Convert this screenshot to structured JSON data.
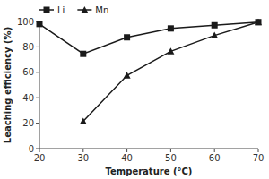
{
  "chart_data": {
    "type": "line",
    "xlabel": "Temperature (°C)",
    "ylabel": "Leaching efficiency (%)",
    "x": [
      20,
      30,
      40,
      50,
      60,
      70
    ],
    "series": [
      {
        "name": "Li",
        "color": "#1a1a1a",
        "marker": "square",
        "values": [
          98.0,
          74.5,
          87.5,
          94.5,
          97.0,
          99.5
        ]
      },
      {
        "name": "Mn",
        "color": "#1a1a1a",
        "marker": "triangle",
        "values": [
          null,
          21.5,
          57.5,
          76.5,
          89.0,
          99.5
        ]
      }
    ],
    "xlim": [
      20,
      70
    ],
    "ylim": [
      0,
      100
    ],
    "xticks": [
      20,
      30,
      40,
      50,
      60,
      70
    ],
    "yticks": [
      0,
      20,
      40,
      60,
      80,
      100
    ],
    "legend": "upper left"
  }
}
